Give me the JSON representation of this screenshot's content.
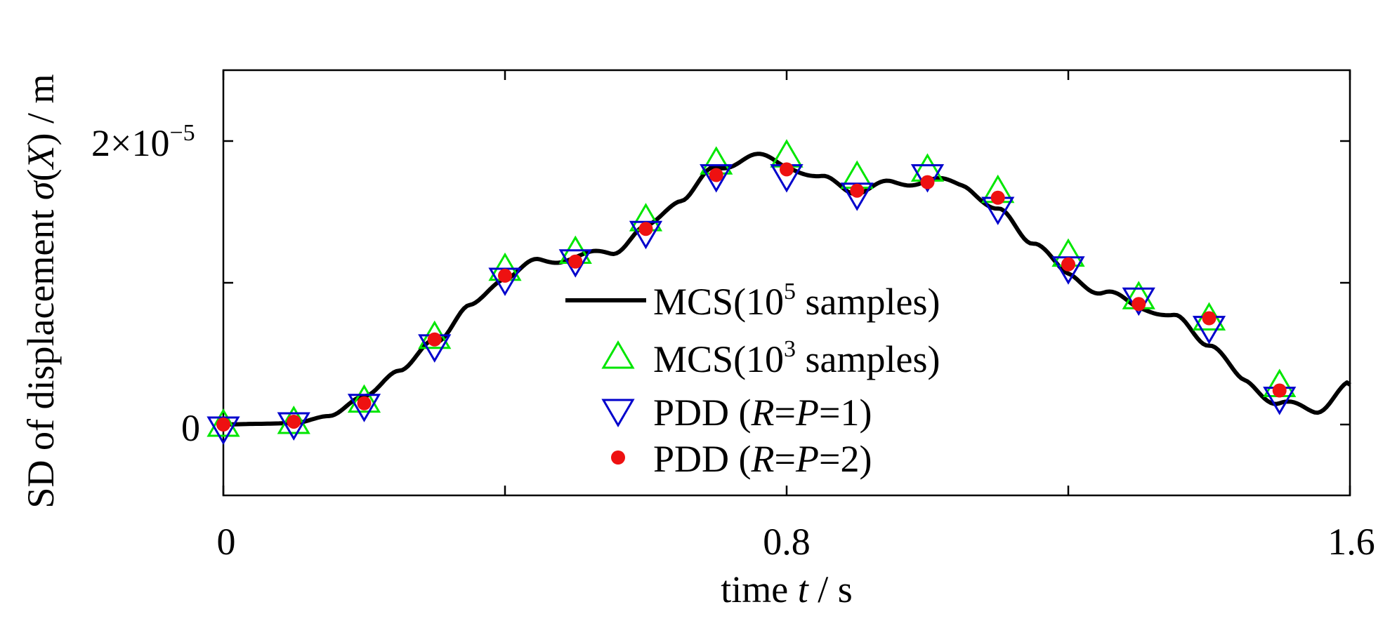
{
  "chart_data": {
    "type": "line",
    "title": "",
    "xlabel": "time t / s",
    "ylabel": "SD of displacement σ(X) / m",
    "xlim": [
      0,
      1.6
    ],
    "ylim": [
      -5e-06,
      2.5e-05
    ],
    "x_ticks": [
      0,
      0.8,
      1.6
    ],
    "x_tick_labels": [
      "0",
      "0.8",
      "1.6"
    ],
    "y_ticks": [
      0,
      1e-05,
      2e-05
    ],
    "y_tick_labels": [
      "0",
      "",
      "2×10⁻⁵"
    ],
    "legend_position": "center",
    "series": [
      {
        "name": "MCS(10⁵ samples)",
        "kind": "line",
        "color": "#000000",
        "x": [
          0,
          0.05,
          0.1,
          0.15,
          0.2,
          0.25,
          0.3,
          0.35,
          0.4,
          0.45,
          0.5,
          0.55,
          0.6,
          0.65,
          0.7,
          0.75,
          0.8,
          0.85,
          0.9,
          0.95,
          1.0,
          1.05,
          1.1,
          1.15,
          1.2,
          1.25,
          1.3,
          1.35,
          1.4,
          1.45,
          1.5,
          1.55,
          1.6
        ],
        "y": [
          0.0,
          5e-08,
          1e-07,
          6e-07,
          2e-06,
          3.8e-06,
          6e-06,
          8.2e-06,
          1.05e-05,
          1.15e-05,
          1.18e-05,
          1.22e-05,
          1.38e-05,
          1.6e-05,
          1.8e-05,
          1.9e-05,
          1.83e-05,
          1.73e-05,
          1.65e-05,
          1.7e-05,
          1.72e-05,
          1.7e-05,
          1.5e-05,
          1.3e-05,
          1.05e-05,
          9.3e-06,
          8.4e-06,
          7.5e-06,
          5.8e-06,
          3e-06,
          1.5e-06,
          1e-06,
          2.8e-06
        ]
      },
      {
        "name": "MCS(10³ samples)",
        "kind": "marker",
        "marker": "triangle-up",
        "color": "#00e600",
        "x": [
          0,
          0.1,
          0.2,
          0.3,
          0.4,
          0.5,
          0.6,
          0.7,
          0.8,
          0.9,
          1.0,
          1.1,
          1.2,
          1.3,
          1.4,
          1.5
        ],
        "y": [
          0.0,
          2e-07,
          1.7e-06,
          6.2e-06,
          1.1e-05,
          1.22e-05,
          1.45e-05,
          1.85e-05,
          1.9e-05,
          1.75e-05,
          1.8e-05,
          1.65e-05,
          1.2e-05,
          9e-06,
          7.5e-06,
          2.8e-06
        ]
      },
      {
        "name": "PDD (R=P=1)",
        "kind": "marker",
        "marker": "triangle-down",
        "color": "#0000cc",
        "x": [
          0,
          0.1,
          0.2,
          0.3,
          0.4,
          0.5,
          0.6,
          0.7,
          0.8,
          0.9,
          1.0,
          1.1,
          1.2,
          1.3,
          1.4,
          1.5
        ],
        "y": [
          -3e-07,
          0.0,
          1.3e-06,
          5.5e-06,
          1.02e-05,
          1.15e-05,
          1.35e-05,
          1.75e-05,
          1.75e-05,
          1.62e-05,
          1.75e-05,
          1.52e-05,
          1.1e-05,
          8.8e-06,
          6.8e-06,
          1.8e-06
        ]
      },
      {
        "name": "PDD (R=P=2)",
        "kind": "marker",
        "marker": "dot",
        "color": "#ee1111",
        "x": [
          0,
          0.1,
          0.2,
          0.3,
          0.4,
          0.5,
          0.6,
          0.7,
          0.8,
          0.9,
          1.0,
          1.1,
          1.2,
          1.3,
          1.4,
          1.5
        ],
        "y": [
          0.0,
          2e-07,
          1.5e-06,
          6e-06,
          1.05e-05,
          1.15e-05,
          1.38e-05,
          1.76e-05,
          1.8e-05,
          1.65e-05,
          1.71e-05,
          1.6e-05,
          1.13e-05,
          8.5e-06,
          7.5e-06,
          2.4e-06
        ]
      }
    ],
    "legend": {
      "entries": [
        {
          "base": "MCS(10",
          "sup": "5",
          "rest": " samples)"
        },
        {
          "base": "MCS(10",
          "sup": "3",
          "rest": " samples)"
        },
        {
          "base": "PDD (",
          "italic1": "R",
          "mid": "=",
          "italic2": "P",
          "rest": "=1)"
        },
        {
          "base": "PDD (",
          "italic1": "R",
          "mid": "=",
          "italic2": "P",
          "rest": "=2)"
        }
      ]
    }
  }
}
